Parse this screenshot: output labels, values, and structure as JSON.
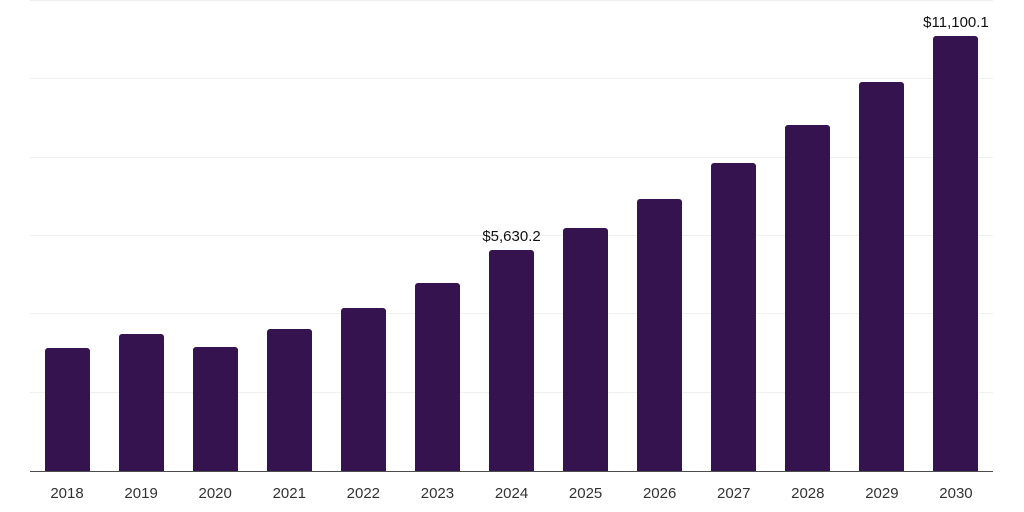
{
  "chart_data": {
    "type": "bar",
    "title": "",
    "xlabel": "",
    "ylabel": "",
    "categories": [
      "2018",
      "2019",
      "2020",
      "2021",
      "2022",
      "2023",
      "2024",
      "2025",
      "2026",
      "2027",
      "2028",
      "2029",
      "2030"
    ],
    "values": [
      3140,
      3500,
      3165,
      3630,
      4160,
      4800,
      5630.2,
      6205,
      6945,
      7865,
      8835,
      9930,
      11100.1
    ],
    "annotations": [
      {
        "category": "2024",
        "text": "$5,630.2"
      },
      {
        "category": "2030",
        "text": "$11,100.1"
      }
    ],
    "ylim": [
      0,
      12000
    ],
    "gridline_step": 2000,
    "grid": true,
    "legend": "none",
    "colors": {
      "bar": "#34134E",
      "gridline": "#f0f0f0",
      "axis_line": "#4d4d4d",
      "value_label": "#111111",
      "tick_label": "#333333",
      "background": "#ffffff"
    }
  }
}
